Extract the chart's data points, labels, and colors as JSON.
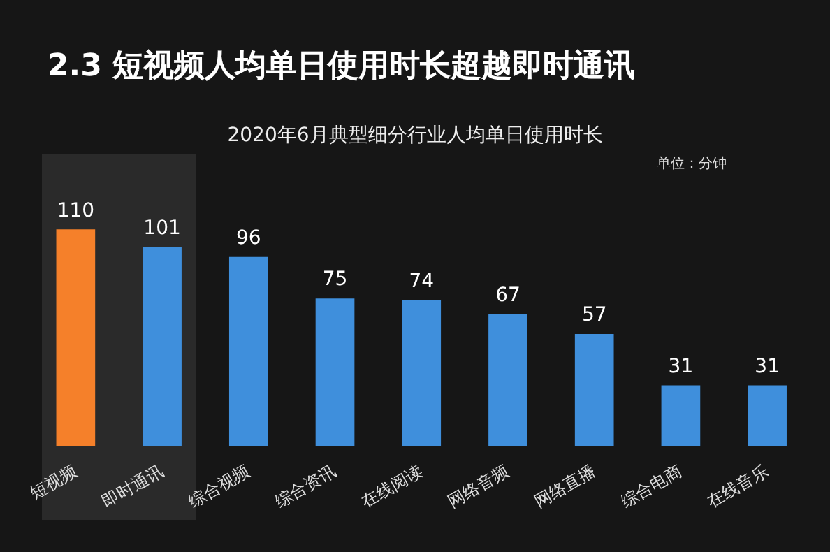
{
  "chart_data": {
    "type": "bar",
    "title": "2.3 短视频人均单日使用时长超越即时通讯",
    "subtitle": "2020年6月典型细分行业人均单日使用时长",
    "annotations": [
      "单位：分钟"
    ],
    "categories": [
      "短视频",
      "即时通讯",
      "综合视频",
      "综合资讯",
      "在线阅读",
      "网络音频",
      "网络直播",
      "综合电商",
      "在线音乐"
    ],
    "values": [
      110,
      101,
      96,
      75,
      74,
      67,
      57,
      31,
      31
    ],
    "colors": [
      "#f5802a",
      "#3f8fdc",
      "#3f8fdc",
      "#3f8fdc",
      "#3f8fdc",
      "#3f8fdc",
      "#3f8fdc",
      "#3f8fdc",
      "#3f8fdc"
    ],
    "data_labels": true,
    "legend": false
  }
}
